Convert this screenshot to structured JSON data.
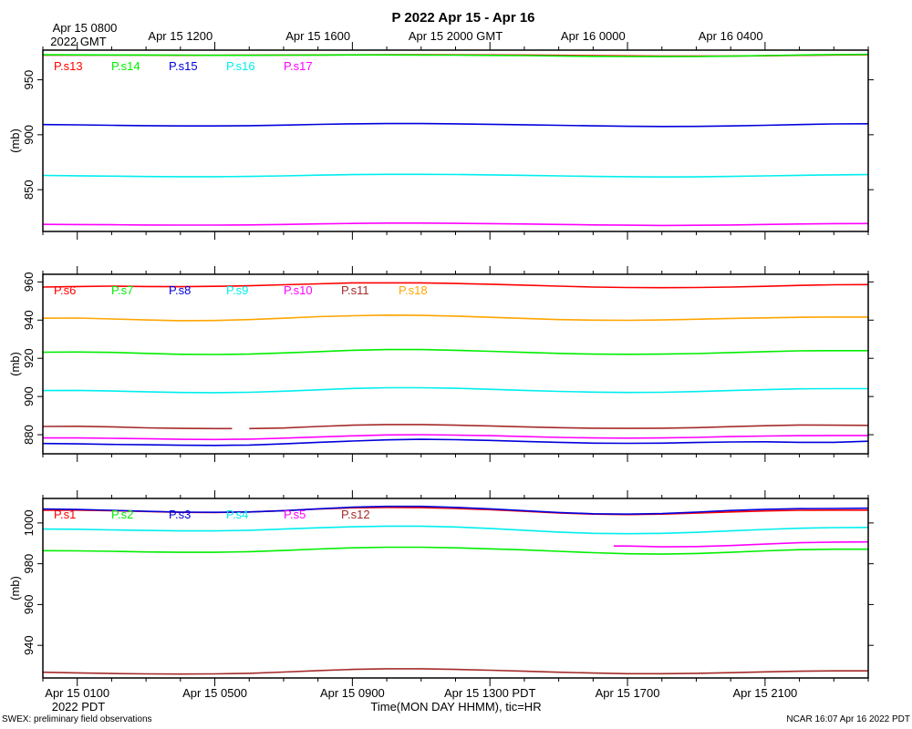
{
  "chart_data": {
    "type": "line",
    "title": "P 2022 Apr 15 - Apr 16",
    "ylabel": "(mb)",
    "xlabel": "Time(MON DAY HHMM), tic=HR",
    "footer_left": "SWEX: preliminary field observations",
    "footer_right": "NCAR 16:07 Apr 16 2022 PDT",
    "top_axis": {
      "first_label": [
        "Apr 15 0800",
        "2022 GMT"
      ],
      "labels": [
        {
          "hour": 4,
          "text": "Apr 15 1200"
        },
        {
          "hour": 8,
          "text": "Apr 15 1600"
        },
        {
          "hour": 12,
          "text": "Apr 15 2000 GMT"
        },
        {
          "hour": 16,
          "text": "Apr 16 0000"
        },
        {
          "hour": 20,
          "text": "Apr 16 0400"
        }
      ]
    },
    "bottom_axis": {
      "labels": [
        {
          "hour": 1,
          "text": "Apr 15 0100"
        },
        {
          "hour": 5,
          "text": "Apr 15 0500"
        },
        {
          "hour": 9,
          "text": "Apr 15 0900"
        },
        {
          "hour": 13,
          "text": "Apr 15 1300 PDT"
        },
        {
          "hour": 17,
          "text": "Apr 15 1700"
        },
        {
          "hour": 21,
          "text": "Apr 15 2100"
        }
      ],
      "tz_label": "2022 PDT"
    },
    "x": [
      0,
      1,
      2,
      3,
      4,
      5,
      6,
      7,
      8,
      9,
      10,
      11,
      12,
      13,
      14,
      15,
      16,
      17,
      18,
      19,
      20,
      21,
      22,
      23,
      24
    ],
    "xlim": [
      0,
      24
    ],
    "panels": [
      {
        "ylim": [
          812,
          977
        ],
        "yticks": [
          850,
          900,
          950
        ],
        "series": [
          {
            "name": "P.s13",
            "color": "#ff0000",
            "values": [
              972.5,
              972.5,
              972.4,
              972.4,
              972.3,
              972.3,
              972.4,
              972.5,
              972.6,
              972.7,
              972.8,
              972.8,
              972.7,
              972.6,
              972.5,
              972.3,
              972.0,
              971.8,
              971.6,
              971.5,
              971.6,
              971.9,
              972.3,
              972.6,
              972.8
            ]
          },
          {
            "name": "P.s14",
            "color": "#00ee00",
            "values": [
              972.8,
              972.7,
              972.6,
              972.5,
              972.4,
              972.3,
              972.3,
              972.4,
              972.5,
              972.6,
              972.6,
              972.5,
              972.4,
              972.2,
              972.0,
              971.7,
              971.4,
              971.2,
              971.1,
              971.2,
              971.5,
              972.0,
              972.5,
              972.9,
              973.1
            ]
          },
          {
            "name": "P.s15",
            "color": "#0000dd",
            "values": [
              909.3,
              909.0,
              908.6,
              908.3,
              908.0,
              908.0,
              908.3,
              908.8,
              909.4,
              909.9,
              910.2,
              910.2,
              909.9,
              909.5,
              909.1,
              908.6,
              908.1,
              907.7,
              907.5,
              907.6,
              908.0,
              908.6,
              909.3,
              909.8,
              910.0
            ]
          },
          {
            "name": "P.s16",
            "color": "#00eeee",
            "values": [
              863.0,
              862.7,
              862.3,
              862.0,
              861.8,
              861.8,
              862.1,
              862.6,
              863.2,
              863.7,
              864.0,
              864.0,
              863.8,
              863.5,
              863.1,
              862.6,
              862.1,
              861.8,
              861.6,
              861.7,
              862.1,
              862.6,
              863.1,
              863.5,
              863.7
            ]
          },
          {
            "name": "P.s17",
            "color": "#ff00ff",
            "values": [
              818.5,
              818.3,
              818.1,
              817.9,
              817.8,
              817.8,
              818.0,
              818.4,
              818.9,
              819.3,
              819.6,
              819.6,
              819.4,
              819.1,
              818.8,
              818.4,
              818.0,
              817.7,
              817.5,
              817.6,
              817.9,
              818.4,
              818.8,
              819.1,
              819.2
            ]
          }
        ]
      },
      {
        "ylim": [
          870,
          964
        ],
        "yticks": [
          880,
          900,
          920,
          940,
          960
        ],
        "series": [
          {
            "name": "P.s6",
            "color": "#ff0000",
            "values": [
              957.3,
              957.6,
              957.8,
              957.6,
              957.5,
              957.7,
              958.0,
              958.5,
              959.0,
              959.5,
              959.5,
              959.5,
              959.2,
              958.8,
              958.3,
              957.8,
              957.3,
              957.1,
              957.0,
              957.1,
              957.3,
              957.7,
              958.2,
              958.5,
              958.6
            ]
          },
          {
            "name": "P.s7",
            "color": "#00ee00",
            "values": [
              923.2,
              923.3,
              923.1,
              922.6,
              922.1,
              922.0,
              922.2,
              922.8,
              923.5,
              924.2,
              924.6,
              924.6,
              924.2,
              923.7,
              923.1,
              922.6,
              922.2,
              922.1,
              922.2,
              922.5,
              923.0,
              923.5,
              923.9,
              924.0,
              924.0
            ]
          },
          {
            "name": "P.s8",
            "color": "#0000dd",
            "values": [
              875.4,
              875.2,
              874.9,
              874.7,
              874.5,
              874.4,
              874.6,
              875.2,
              876.0,
              876.7,
              877.3,
              877.6,
              877.4,
              877.0,
              876.5,
              876.0,
              875.6,
              875.5,
              875.6,
              875.9,
              876.2,
              876.3,
              876.0,
              876.0,
              876.6
            ]
          },
          {
            "name": "P.s9",
            "color": "#00eeee",
            "values": [
              903.1,
              903.2,
              902.9,
              902.5,
              902.1,
              902.0,
              902.2,
              902.8,
              903.5,
              904.2,
              904.6,
              904.6,
              904.3,
              903.8,
              903.2,
              902.7,
              902.3,
              902.1,
              902.2,
              902.6,
              903.1,
              903.6,
              904.0,
              904.1,
              904.1
            ]
          },
          {
            "name": "P.s10",
            "color": "#ff00ff",
            "values": [
              878.3,
              878.3,
              878.1,
              877.9,
              877.6,
              877.5,
              877.7,
              878.2,
              878.8,
              879.4,
              879.9,
              880.0,
              879.8,
              879.5,
              879.0,
              878.6,
              878.3,
              878.2,
              878.3,
              878.6,
              879.0,
              879.3,
              879.5,
              879.6,
              879.6
            ]
          },
          {
            "name": "P.s11",
            "color": "#a52a2a",
            "gap": [
              5.5,
              6.0
            ],
            "values": [
              884.3,
              884.4,
              884.1,
              883.6,
              883.3,
              883.2,
              883.2,
              883.5,
              884.3,
              885.0,
              885.3,
              885.3,
              885.0,
              884.6,
              884.1,
              883.7,
              883.4,
              883.3,
              883.4,
              883.7,
              884.2,
              884.7,
              885.1,
              885.0,
              884.9
            ]
          },
          {
            "name": "P.s18",
            "color": "#ffa500",
            "values": [
              941.0,
              941.1,
              940.6,
              940.1,
              939.7,
              939.8,
              940.3,
              941.0,
              941.8,
              942.3,
              942.6,
              942.5,
              942.1,
              941.5,
              940.9,
              940.3,
              940.0,
              939.9,
              940.1,
              940.5,
              940.9,
              941.2,
              941.5,
              941.6,
              941.6
            ]
          }
        ]
      },
      {
        "ylim": [
          924,
          1012
        ],
        "yticks": [
          940,
          960,
          980,
          1000
        ],
        "series": [
          {
            "name": "P.s1",
            "color": "#ff0000",
            "values": [
              1006.2,
              1006.3,
              1006.0,
              1005.6,
              1005.2,
              1005.1,
              1005.4,
              1006.0,
              1006.8,
              1007.4,
              1007.6,
              1007.5,
              1007.1,
              1006.5,
              1005.7,
              1004.9,
              1004.3,
              1004.1,
              1004.3,
              1004.8,
              1005.4,
              1005.9,
              1006.2,
              1006.3,
              1006.3
            ]
          },
          {
            "name": "P.s2",
            "color": "#00ee00",
            "values": [
              986.4,
              986.3,
              986.1,
              985.8,
              985.6,
              985.6,
              985.9,
              986.5,
              987.2,
              987.8,
              988.1,
              988.1,
              987.8,
              987.3,
              986.8,
              986.1,
              985.4,
              984.9,
              984.7,
              985.0,
              985.6,
              986.3,
              986.9,
              987.1,
              987.1
            ]
          },
          {
            "name": "P.s3",
            "color": "#0000dd",
            "values": [
              1006.8,
              1006.6,
              1006.2,
              1005.7,
              1005.3,
              1005.2,
              1005.4,
              1006.0,
              1006.9,
              1007.7,
              1008.1,
              1008.1,
              1007.6,
              1006.9,
              1006.0,
              1005.1,
              1004.5,
              1004.3,
              1004.6,
              1005.3,
              1006.1,
              1006.7,
              1007.0,
              1007.1,
              1007.2
            ]
          },
          {
            "name": "P.s4",
            "color": "#00eeee",
            "values": [
              997.0,
              996.9,
              996.6,
              996.3,
              996.1,
              996.1,
              996.4,
              997.0,
              997.6,
              998.1,
              998.4,
              998.4,
              998.0,
              997.3,
              996.4,
              995.5,
              994.9,
              994.7,
              994.9,
              995.4,
              996.1,
              996.8,
              997.4,
              997.7,
              997.8
            ]
          },
          {
            "name": "P.s5",
            "color": "#ff00ff",
            "x_start": 16.6,
            "values": [
              null,
              null,
              null,
              null,
              null,
              null,
              null,
              null,
              null,
              null,
              null,
              null,
              null,
              null,
              null,
              null,
              null,
              988.7,
              988.3,
              988.4,
              988.9,
              989.6,
              990.3,
              990.6,
              990.7
            ]
          },
          {
            "name": "P.s12",
            "color": "#a52a2a",
            "values": [
              926.8,
              926.5,
              926.2,
              926.0,
              925.9,
              926.0,
              926.3,
              926.9,
              927.6,
              928.2,
              928.5,
              928.5,
              928.2,
              927.8,
              927.3,
              926.8,
              926.4,
              926.1,
              926.1,
              926.3,
              926.6,
              927.0,
              927.3,
              927.5,
              927.5
            ]
          }
        ]
      }
    ]
  }
}
